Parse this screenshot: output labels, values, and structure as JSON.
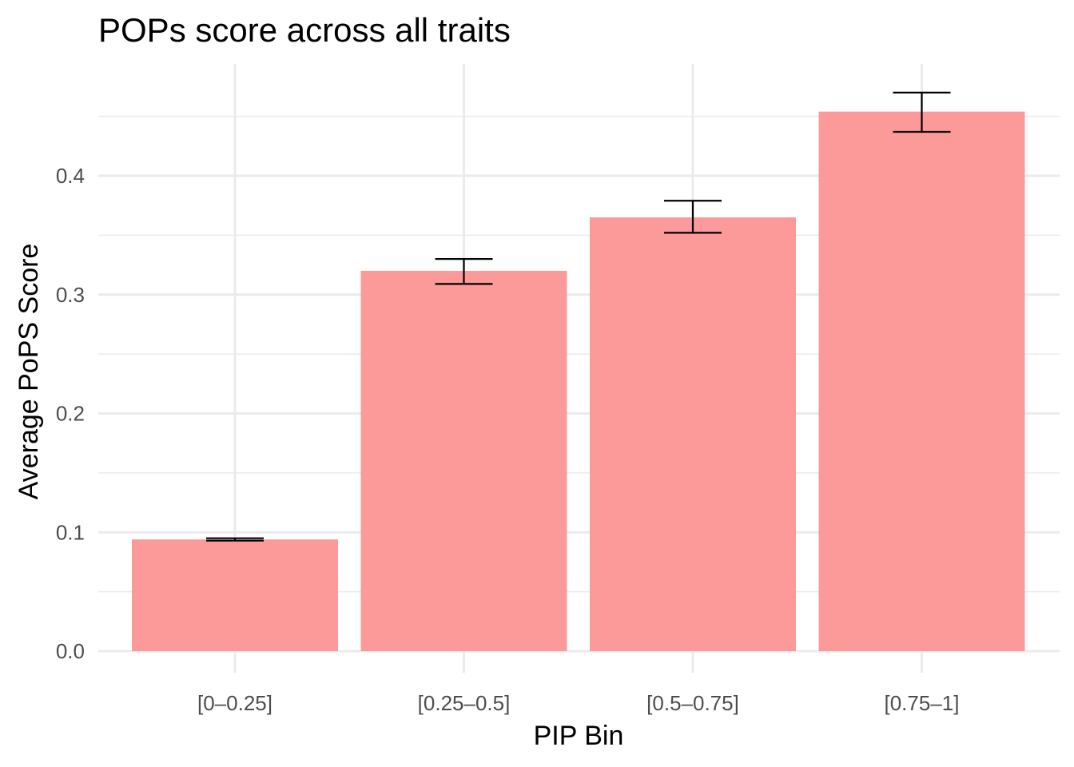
{
  "chart_data": {
    "type": "bar",
    "title": "POPs score across all traits",
    "xlabel": "PIP Bin",
    "ylabel": "Average PoPS Score",
    "categories": [
      "[0–0.25]",
      "[0.25–0.5]",
      "[0.5–0.75]",
      "[0.75–1]"
    ],
    "values": [
      0.094,
      0.32,
      0.365,
      0.454
    ],
    "error_low": [
      0.093,
      0.309,
      0.352,
      0.437
    ],
    "error_high": [
      0.095,
      0.33,
      0.379,
      0.47
    ],
    "ylim": [
      0,
      0.47
    ],
    "yticks": [
      0.0,
      0.1,
      0.2,
      0.3,
      0.4
    ],
    "ytick_labels": [
      "0.0",
      "0.1",
      "0.2",
      "0.3",
      "0.4"
    ],
    "grid": true,
    "bar_color": "#fb9a99",
    "error_bar_color": "#000000",
    "grid_color": "#ebebeb"
  }
}
